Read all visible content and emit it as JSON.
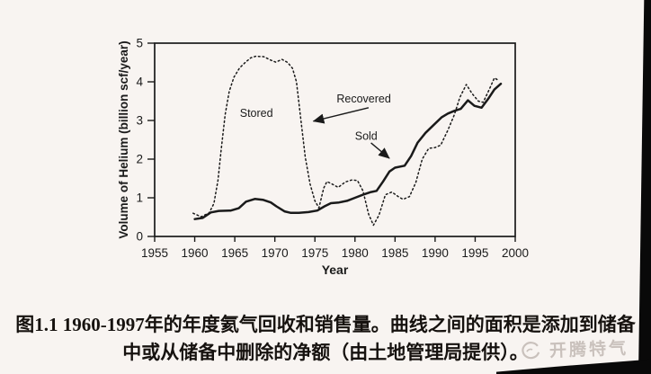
{
  "colors": {
    "ink": "#1a1a1a",
    "paper": "#f8f4f1",
    "watermark": "#c9c1bc",
    "scan_edge": "#090909"
  },
  "chart_data": {
    "type": "line",
    "title": "",
    "xlabel": "Year",
    "ylabel": "Volume of Helium (billion scf/year)",
    "xlim": [
      1955,
      2000
    ],
    "ylim": [
      0,
      5
    ],
    "x_ticks": [
      1955,
      1960,
      1965,
      1970,
      1975,
      1980,
      1985,
      1990,
      1995,
      2000
    ],
    "y_ticks": [
      0,
      1,
      2,
      3,
      4,
      5
    ],
    "grid": false,
    "legend": "inline annotations with arrows",
    "series": [
      {
        "name": "Recovered",
        "line_style": "dotted",
        "points": [
          [
            1959.8,
            0.6
          ],
          [
            1960.8,
            0.51
          ],
          [
            1961.8,
            0.61
          ],
          [
            1962.4,
            0.85
          ],
          [
            1962.9,
            1.45
          ],
          [
            1963.3,
            2.25
          ],
          [
            1963.8,
            3.15
          ],
          [
            1964.3,
            3.75
          ],
          [
            1964.9,
            4.12
          ],
          [
            1965.6,
            4.36
          ],
          [
            1966.3,
            4.5
          ],
          [
            1967.0,
            4.62
          ],
          [
            1967.6,
            4.66
          ],
          [
            1968.6,
            4.65
          ],
          [
            1969.4,
            4.57
          ],
          [
            1970.1,
            4.51
          ],
          [
            1970.9,
            4.58
          ],
          [
            1971.6,
            4.5
          ],
          [
            1972.2,
            4.35
          ],
          [
            1972.7,
            4.0
          ],
          [
            1973.2,
            3.1
          ],
          [
            1973.8,
            2.05
          ],
          [
            1974.4,
            1.35
          ],
          [
            1975.0,
            0.92
          ],
          [
            1975.5,
            0.74
          ],
          [
            1976.1,
            1.25
          ],
          [
            1976.5,
            1.42
          ],
          [
            1977.1,
            1.36
          ],
          [
            1977.9,
            1.27
          ],
          [
            1978.8,
            1.41
          ],
          [
            1979.6,
            1.46
          ],
          [
            1980.3,
            1.45
          ],
          [
            1981.0,
            1.18
          ],
          [
            1981.7,
            0.58
          ],
          [
            1982.3,
            0.29
          ],
          [
            1983.0,
            0.55
          ],
          [
            1983.8,
            1.08
          ],
          [
            1984.6,
            1.15
          ],
          [
            1985.4,
            1.03
          ],
          [
            1986.0,
            0.96
          ],
          [
            1986.8,
            1.03
          ],
          [
            1987.6,
            1.4
          ],
          [
            1988.4,
            2.0
          ],
          [
            1989.2,
            2.28
          ],
          [
            1990.0,
            2.3
          ],
          [
            1990.7,
            2.36
          ],
          [
            1991.6,
            2.75
          ],
          [
            1992.4,
            3.15
          ],
          [
            1993.1,
            3.6
          ],
          [
            1993.9,
            3.93
          ],
          [
            1994.6,
            3.7
          ],
          [
            1995.4,
            3.5
          ],
          [
            1996.0,
            3.47
          ],
          [
            1996.8,
            3.82
          ],
          [
            1997.4,
            4.1
          ],
          [
            1997.9,
            4.04
          ]
        ]
      },
      {
        "name": "Sold",
        "line_style": "solid",
        "points": [
          [
            1960.0,
            0.45
          ],
          [
            1961.0,
            0.48
          ],
          [
            1962.0,
            0.62
          ],
          [
            1963.0,
            0.66
          ],
          [
            1964.5,
            0.67
          ],
          [
            1965.5,
            0.73
          ],
          [
            1966.4,
            0.9
          ],
          [
            1967.5,
            0.97
          ],
          [
            1968.5,
            0.95
          ],
          [
            1969.5,
            0.88
          ],
          [
            1970.2,
            0.78
          ],
          [
            1971.2,
            0.65
          ],
          [
            1972.0,
            0.61
          ],
          [
            1973.0,
            0.61
          ],
          [
            1974.2,
            0.63
          ],
          [
            1975.3,
            0.67
          ],
          [
            1976.2,
            0.78
          ],
          [
            1977.0,
            0.86
          ],
          [
            1978.0,
            0.88
          ],
          [
            1979.0,
            0.92
          ],
          [
            1980.0,
            1.0
          ],
          [
            1981.0,
            1.08
          ],
          [
            1982.0,
            1.15
          ],
          [
            1982.7,
            1.18
          ],
          [
            1983.5,
            1.42
          ],
          [
            1984.3,
            1.68
          ],
          [
            1985.0,
            1.78
          ],
          [
            1986.2,
            1.83
          ],
          [
            1987.0,
            2.08
          ],
          [
            1987.8,
            2.42
          ],
          [
            1988.8,
            2.68
          ],
          [
            1989.8,
            2.88
          ],
          [
            1990.8,
            3.08
          ],
          [
            1991.6,
            3.18
          ],
          [
            1992.4,
            3.25
          ],
          [
            1993.2,
            3.3
          ],
          [
            1994.1,
            3.52
          ],
          [
            1994.9,
            3.38
          ],
          [
            1995.8,
            3.33
          ],
          [
            1996.6,
            3.55
          ],
          [
            1997.4,
            3.8
          ],
          [
            1998.2,
            3.95
          ]
        ]
      }
    ],
    "annotations": [
      {
        "id": "stored",
        "text": "Stored",
        "x": 1967.7,
        "y": 3.19
      },
      {
        "id": "recovered",
        "text": "Recovered",
        "x": 1981.1,
        "y": 3.56
      },
      {
        "id": "sold",
        "text": "Sold",
        "x": 1981.4,
        "y": 2.59
      }
    ],
    "arrows": [
      {
        "for": "recovered",
        "x1": 1981.7,
        "y1": 3.33,
        "x2": 1974.8,
        "y2": 2.98
      },
      {
        "for": "sold",
        "x1": 1982.0,
        "y1": 2.42,
        "x2": 1984.3,
        "y2": 2.02
      }
    ]
  },
  "caption": {
    "line1": "图1.1 1960-1997年的年度氦气回收和销售量。曲线之间的面积是添加到储备",
    "line2": "中或从储备中删除的净额（由土地管理局提供）。"
  },
  "watermark": {
    "text": "开腾特气"
  }
}
